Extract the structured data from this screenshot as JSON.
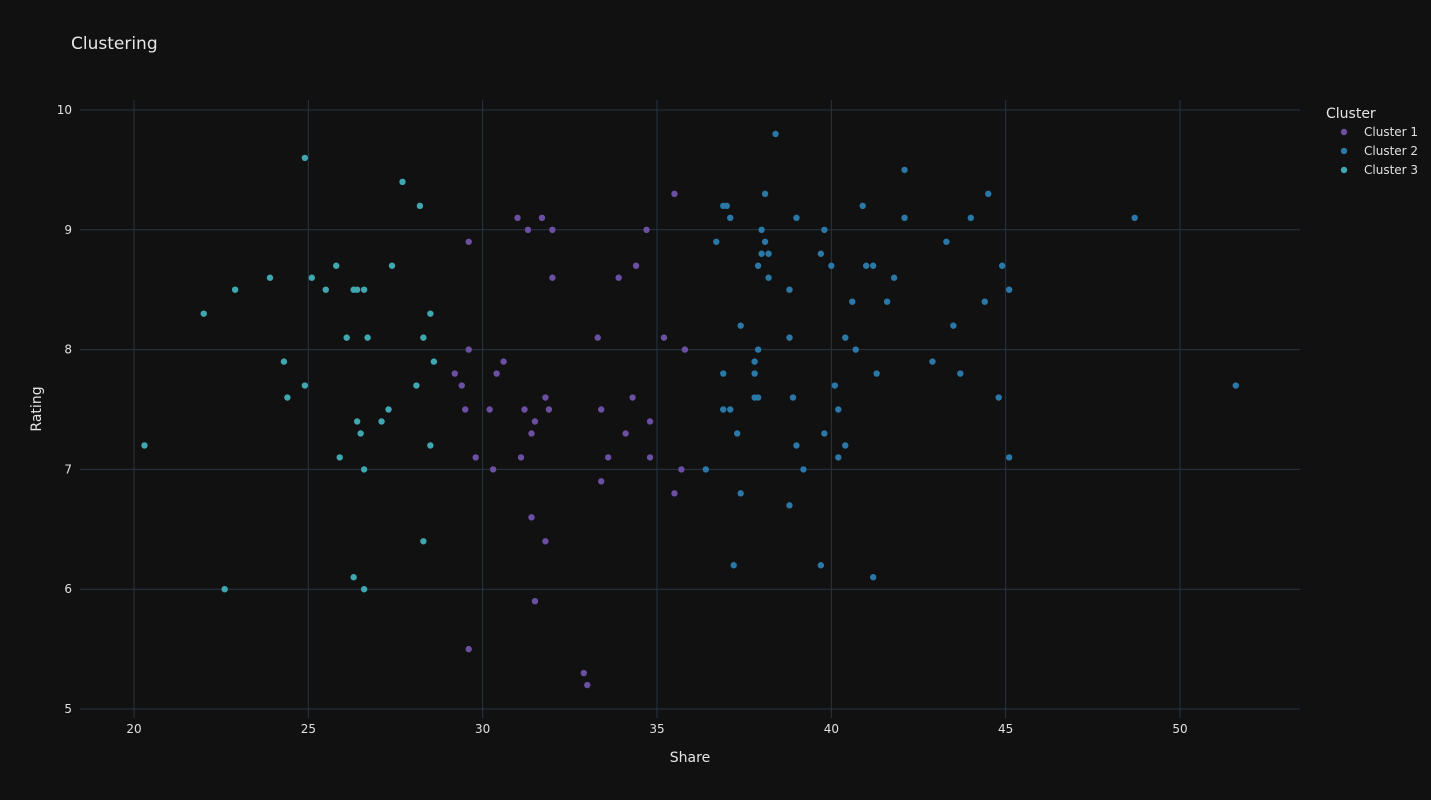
{
  "chart_data": {
    "type": "scatter",
    "title": "Clustering",
    "xlabel": "Share",
    "ylabel": "Rating",
    "xlim": [
      18.5,
      53.5
    ],
    "ylim": [
      4.9,
      10.1
    ],
    "xticks": [
      20,
      25,
      30,
      35,
      40,
      45,
      50
    ],
    "yticks": [
      5,
      6,
      7,
      8,
      9,
      10
    ],
    "grid": true,
    "legend": {
      "title": "Cluster",
      "position": "top-right"
    },
    "series": [
      {
        "name": "Cluster 1",
        "color": "#6a4fa3",
        "points": [
          [
            29.6,
            8.9
          ],
          [
            31.0,
            9.1
          ],
          [
            31.3,
            9.0
          ],
          [
            31.7,
            9.1
          ],
          [
            32.0,
            9.0
          ],
          [
            32.0,
            8.6
          ],
          [
            35.5,
            9.3
          ],
          [
            34.7,
            9.0
          ],
          [
            34.4,
            8.7
          ],
          [
            33.9,
            8.6
          ],
          [
            33.3,
            8.1
          ],
          [
            35.2,
            8.1
          ],
          [
            35.8,
            8.0
          ],
          [
            29.6,
            8.0
          ],
          [
            30.6,
            7.9
          ],
          [
            30.4,
            7.8
          ],
          [
            29.2,
            7.8
          ],
          [
            29.4,
            7.7
          ],
          [
            31.8,
            7.6
          ],
          [
            34.3,
            7.6
          ],
          [
            29.5,
            7.5
          ],
          [
            30.2,
            7.5
          ],
          [
            31.2,
            7.5
          ],
          [
            31.9,
            7.5
          ],
          [
            33.4,
            7.5
          ],
          [
            31.5,
            7.4
          ],
          [
            34.8,
            7.4
          ],
          [
            31.4,
            7.3
          ],
          [
            34.1,
            7.3
          ],
          [
            29.8,
            7.1
          ],
          [
            31.1,
            7.1
          ],
          [
            33.6,
            7.1
          ],
          [
            34.8,
            7.1
          ],
          [
            30.3,
            7.0
          ],
          [
            35.7,
            7.0
          ],
          [
            33.4,
            6.9
          ],
          [
            35.5,
            6.8
          ],
          [
            31.4,
            6.6
          ],
          [
            31.8,
            6.4
          ],
          [
            31.5,
            5.9
          ],
          [
            29.6,
            5.5
          ],
          [
            32.9,
            5.3
          ],
          [
            33.0,
            5.2
          ]
        ]
      },
      {
        "name": "Cluster 2",
        "color": "#2a78a8",
        "points": [
          [
            38.4,
            9.8
          ],
          [
            42.1,
            9.5
          ],
          [
            38.1,
            9.3
          ],
          [
            44.5,
            9.3
          ],
          [
            36.9,
            9.2
          ],
          [
            37.0,
            9.2
          ],
          [
            40.9,
            9.2
          ],
          [
            37.1,
            9.1
          ],
          [
            39.0,
            9.1
          ],
          [
            42.1,
            9.1
          ],
          [
            44.0,
            9.1
          ],
          [
            48.7,
            9.1
          ],
          [
            38.0,
            9.0
          ],
          [
            39.8,
            9.0
          ],
          [
            36.7,
            8.9
          ],
          [
            38.1,
            8.9
          ],
          [
            43.3,
            8.9
          ],
          [
            38.0,
            8.8
          ],
          [
            38.2,
            8.8
          ],
          [
            39.7,
            8.8
          ],
          [
            37.9,
            8.7
          ],
          [
            40.0,
            8.7
          ],
          [
            41.0,
            8.7
          ],
          [
            41.2,
            8.7
          ],
          [
            44.9,
            8.7
          ],
          [
            38.2,
            8.6
          ],
          [
            41.8,
            8.6
          ],
          [
            38.8,
            8.5
          ],
          [
            45.1,
            8.5
          ],
          [
            40.6,
            8.4
          ],
          [
            41.6,
            8.4
          ],
          [
            44.4,
            8.4
          ],
          [
            37.4,
            8.2
          ],
          [
            43.5,
            8.2
          ],
          [
            38.8,
            8.1
          ],
          [
            40.4,
            8.1
          ],
          [
            37.9,
            8.0
          ],
          [
            40.7,
            8.0
          ],
          [
            37.8,
            7.9
          ],
          [
            42.9,
            7.9
          ],
          [
            36.9,
            7.8
          ],
          [
            37.8,
            7.8
          ],
          [
            41.3,
            7.8
          ],
          [
            43.7,
            7.8
          ],
          [
            40.1,
            7.7
          ],
          [
            51.6,
            7.7
          ],
          [
            37.8,
            7.6
          ],
          [
            37.9,
            7.6
          ],
          [
            38.9,
            7.6
          ],
          [
            44.8,
            7.6
          ],
          [
            36.9,
            7.5
          ],
          [
            37.1,
            7.5
          ],
          [
            40.2,
            7.5
          ],
          [
            37.3,
            7.3
          ],
          [
            39.8,
            7.3
          ],
          [
            39.0,
            7.2
          ],
          [
            40.4,
            7.2
          ],
          [
            40.2,
            7.1
          ],
          [
            45.1,
            7.1
          ],
          [
            36.4,
            7.0
          ],
          [
            39.2,
            7.0
          ],
          [
            37.4,
            6.8
          ],
          [
            38.8,
            6.7
          ],
          [
            37.2,
            6.2
          ],
          [
            39.7,
            6.2
          ],
          [
            41.2,
            6.1
          ]
        ]
      },
      {
        "name": "Cluster 3",
        "color": "#3fa7b0",
        "points": [
          [
            24.9,
            9.6
          ],
          [
            27.7,
            9.4
          ],
          [
            28.2,
            9.2
          ],
          [
            25.8,
            8.7
          ],
          [
            27.4,
            8.7
          ],
          [
            23.9,
            8.6
          ],
          [
            25.1,
            8.6
          ],
          [
            22.9,
            8.5
          ],
          [
            25.5,
            8.5
          ],
          [
            26.3,
            8.5
          ],
          [
            26.4,
            8.5
          ],
          [
            26.6,
            8.5
          ],
          [
            22.0,
            8.3
          ],
          [
            28.5,
            8.3
          ],
          [
            26.1,
            8.1
          ],
          [
            26.7,
            8.1
          ],
          [
            28.3,
            8.1
          ],
          [
            24.3,
            7.9
          ],
          [
            28.6,
            7.9
          ],
          [
            24.9,
            7.7
          ],
          [
            28.1,
            7.7
          ],
          [
            24.4,
            7.6
          ],
          [
            27.3,
            7.5
          ],
          [
            26.4,
            7.4
          ],
          [
            27.1,
            7.4
          ],
          [
            26.5,
            7.3
          ],
          [
            20.3,
            7.2
          ],
          [
            28.5,
            7.2
          ],
          [
            25.9,
            7.1
          ],
          [
            26.6,
            7.0
          ],
          [
            28.3,
            6.4
          ],
          [
            26.3,
            6.1
          ],
          [
            22.6,
            6.0
          ],
          [
            26.6,
            6.0
          ]
        ]
      }
    ]
  }
}
